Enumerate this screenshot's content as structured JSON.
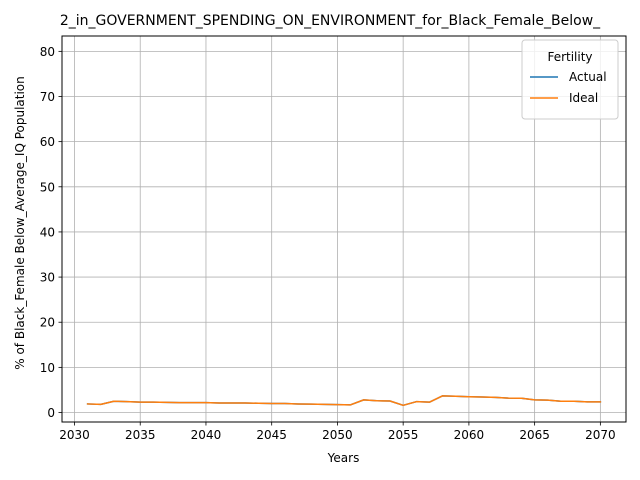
{
  "chart_data": {
    "type": "line",
    "title": "2_in_GOVERNMENT_SPENDING_ON_ENVIRONMENT_for_Black_Female_Below_",
    "xlabel": "Years",
    "ylabel": "% of Black_Female Below_Average_IQ Population",
    "xlim": [
      2029.05,
      2071.95
    ],
    "ylim": [
      -2.1,
      83.4
    ],
    "x_ticks": [
      2030,
      2035,
      2040,
      2045,
      2050,
      2055,
      2060,
      2065,
      2070
    ],
    "y_ticks": [
      0,
      10,
      20,
      30,
      40,
      50,
      60,
      70,
      80
    ],
    "grid": true,
    "legend": {
      "title": "Fertility",
      "position": "top-right",
      "entries": [
        {
          "name": "Actual",
          "color": "#1f77b4"
        },
        {
          "name": "Ideal",
          "color": "#ff7f0e"
        }
      ]
    },
    "x": [
      2031,
      2032,
      2033,
      2034,
      2035,
      2036,
      2037,
      2038,
      2039,
      2040,
      2041,
      2042,
      2043,
      2044,
      2045,
      2046,
      2047,
      2048,
      2049,
      2050,
      2051,
      2052,
      2053,
      2054,
      2055,
      2056,
      2057,
      2058,
      2059,
      2060,
      2061,
      2062,
      2063,
      2064,
      2065,
      2066,
      2067,
      2068,
      2069,
      2070
    ],
    "series": [
      {
        "name": "Actual",
        "color": "#1f77b4",
        "values": [
          1.9,
          1.8,
          2.5,
          2.4,
          2.3,
          2.3,
          2.25,
          2.2,
          2.2,
          2.2,
          2.1,
          2.1,
          2.1,
          2.05,
          2.0,
          2.0,
          1.9,
          1.85,
          1.8,
          1.75,
          1.7,
          2.8,
          2.6,
          2.55,
          1.6,
          2.4,
          2.3,
          3.7,
          3.6,
          3.5,
          3.45,
          3.35,
          3.2,
          3.15,
          2.8,
          2.75,
          2.5,
          2.5,
          2.35,
          2.35
        ]
      },
      {
        "name": "Ideal",
        "color": "#ff7f0e",
        "values": [
          1.9,
          1.8,
          2.5,
          2.4,
          2.3,
          2.3,
          2.25,
          2.2,
          2.2,
          2.2,
          2.1,
          2.1,
          2.1,
          2.05,
          2.0,
          2.0,
          1.9,
          1.85,
          1.8,
          1.75,
          1.7,
          2.8,
          2.6,
          2.55,
          1.6,
          2.4,
          2.3,
          3.7,
          3.6,
          3.5,
          3.45,
          3.35,
          3.2,
          3.15,
          2.8,
          2.75,
          2.5,
          2.5,
          2.35,
          2.35
        ]
      }
    ]
  }
}
